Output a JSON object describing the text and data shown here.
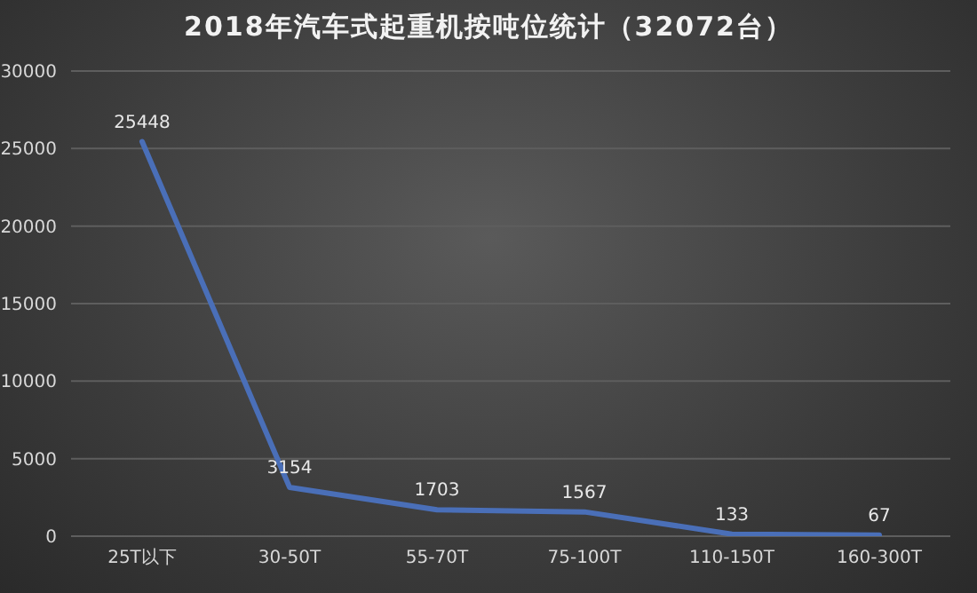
{
  "chart_data": {
    "type": "line",
    "title": "2018年汽车式起重机按吨位统计（32072台）",
    "categories": [
      "25T以下",
      "30-50T",
      "55-70T",
      "75-100T",
      "110-150T",
      "160-300T"
    ],
    "series": [
      {
        "color": "#4a6fb8",
        "values": [
          25448,
          3154,
          1703,
          1567,
          133,
          67
        ]
      }
    ],
    "ylim": [
      0,
      30000
    ],
    "yticks": [
      0,
      5000,
      10000,
      15000,
      20000,
      25000,
      30000
    ],
    "grid": "y",
    "data_labels": true,
    "marker": "none",
    "line_style": "solid",
    "legend": false
  }
}
